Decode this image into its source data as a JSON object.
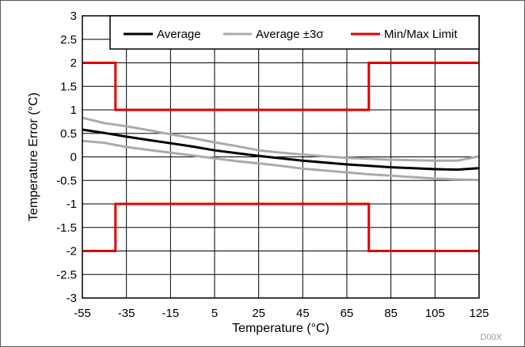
{
  "chart_data": {
    "type": "line",
    "xlabel": "Temperature (°C)",
    "ylabel": "Temperature Error (°C)",
    "xlim": [
      -55,
      125
    ],
    "ylim": [
      -3,
      3
    ],
    "xticks": [
      -55,
      -35,
      -15,
      5,
      25,
      45,
      65,
      85,
      105,
      125
    ],
    "yticks": [
      -3,
      -2.5,
      -2,
      -1.5,
      -1,
      -0.5,
      0,
      0.5,
      1,
      1.5,
      2,
      2.5,
      3
    ],
    "grid": true,
    "legend_position": "top-right",
    "series": [
      {
        "name": "Average",
        "color": "#000000",
        "x": [
          -55,
          -45,
          -35,
          -25,
          -15,
          -5,
          5,
          15,
          25,
          35,
          45,
          55,
          65,
          75,
          85,
          95,
          105,
          115,
          125
        ],
        "y": [
          0.58,
          0.51,
          0.43,
          0.36,
          0.29,
          0.22,
          0.14,
          0.08,
          0.02,
          -0.03,
          -0.08,
          -0.12,
          -0.16,
          -0.19,
          -0.22,
          -0.24,
          -0.26,
          -0.27,
          -0.24
        ]
      },
      {
        "name": "Average ±3σ",
        "color": "#aaaaaa",
        "x": [
          -55,
          -45,
          -35,
          -25,
          -15,
          -5,
          5,
          15,
          25,
          35,
          45,
          55,
          65,
          75,
          85,
          95,
          105,
          115,
          125
        ],
        "y": [
          0.83,
          0.72,
          0.65,
          0.57,
          0.48,
          0.4,
          0.31,
          0.23,
          0.14,
          0.09,
          0.05,
          0.01,
          -0.02,
          -0.04,
          -0.06,
          -0.07,
          -0.08,
          -0.08,
          0.01
        ]
      },
      {
        "name": "",
        "color": "#aaaaaa",
        "x": [
          -55,
          -45,
          -35,
          -25,
          -15,
          -5,
          5,
          15,
          25,
          35,
          45,
          55,
          65,
          75,
          85,
          95,
          105,
          115,
          125
        ],
        "y": [
          0.34,
          0.3,
          0.21,
          0.15,
          0.09,
          0.03,
          -0.03,
          -0.09,
          -0.14,
          -0.19,
          -0.25,
          -0.29,
          -0.33,
          -0.37,
          -0.4,
          -0.43,
          -0.46,
          -0.48,
          -0.49
        ]
      },
      {
        "name": "Min/Max Limit",
        "color": "#e00000",
        "x": [
          -55,
          -40,
          -40,
          75,
          75,
          125
        ],
        "y": [
          2,
          2,
          1,
          1,
          2,
          2
        ]
      },
      {
        "name": "",
        "color": "#e00000",
        "x": [
          -55,
          -40,
          -40,
          75,
          75,
          125
        ],
        "y": [
          -2,
          -2,
          -1,
          -1,
          -2,
          -2
        ]
      }
    ],
    "watermark": "D00X"
  }
}
